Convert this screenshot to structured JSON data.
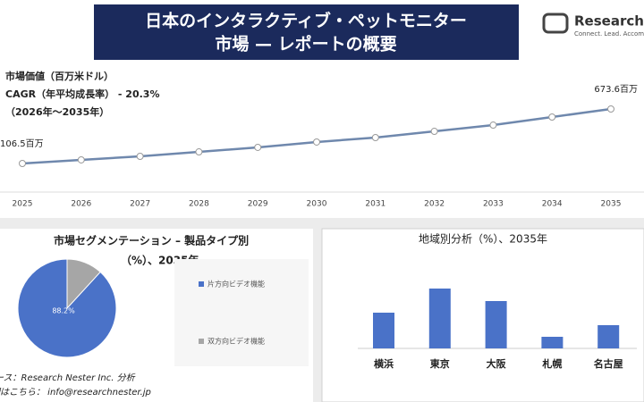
{
  "header": {
    "title_line1": "日本のインタラクティブ・ペットモニター",
    "title_line2": "市場 — レポートの概要",
    "logo_name": "Research Nester",
    "logo_tagline": "Connect. Lead. Accomplish"
  },
  "annotation": {
    "line1": "市場価値（百万米ドル）",
    "line2": "CAGR（年平均成長率） - 20.3%",
    "line3": "（2026年～2035年）"
  },
  "source": {
    "line1": "ソース：Research Nester Inc. 分析",
    "line2": "詳細はこちら： info@researchnester.jp"
  },
  "chart_data": [
    {
      "type": "line",
      "categories": [
        "2025",
        "2026",
        "2027",
        "2028",
        "2029",
        "2030",
        "2031",
        "2032",
        "2033",
        "2034",
        "2035"
      ],
      "values": [
        106.5,
        144,
        181,
        227,
        274,
        330,
        376,
        441,
        506,
        590,
        673.6
      ],
      "value_labels": [
        "106.5百万",
        null,
        null,
        null,
        null,
        null,
        null,
        null,
        null,
        null,
        "673.6百万"
      ],
      "color": "#6f88ad"
    },
    {
      "type": "pie",
      "title_line1": "市場セグメンテーション – 製品タイプ別",
      "title_line2": "（%）、2035年",
      "categories": [
        "片方向ビデオ機能",
        "双方向ビデオ機能"
      ],
      "values": [
        88.2,
        11.8
      ],
      "value_labels": [
        "88.2%",
        null
      ],
      "colors": [
        "#4a72c8",
        "#a6a6a6"
      ]
    },
    {
      "type": "bar",
      "title": "地域別分析（%）、2035年",
      "categories": [
        "横浜",
        "東京",
        "大阪",
        "札幌",
        "名古屋"
      ],
      "values": [
        40,
        67,
        53,
        13,
        26
      ],
      "color": "#4a72c8"
    }
  ]
}
